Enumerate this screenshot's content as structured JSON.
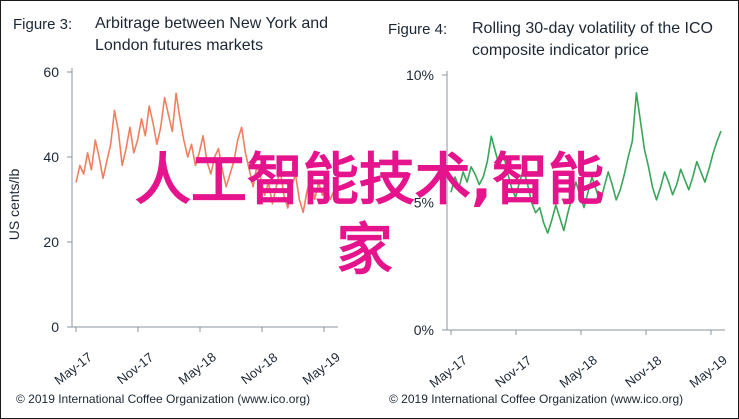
{
  "overlay": {
    "line1": "人工智能技术,智能",
    "line2": "家"
  },
  "colors": {
    "series1": "#f07f61",
    "series2": "#3aa55a",
    "axis": "#8a949e",
    "text": "#1c2733",
    "overlay": "#e6148c"
  },
  "chart_data": [
    {
      "type": "line",
      "figure_label": "Figure 3:",
      "title": "Arbitrage between New York and London futures markets",
      "title_lines": [
        "Arbitrage between New York and",
        "London futures markets"
      ],
      "ylabel": "US cents/lb",
      "ylim": [
        0,
        60
      ],
      "yticks": [
        0,
        20,
        40,
        60
      ],
      "ytick_labels": [
        "0",
        "20",
        "40",
        "60"
      ],
      "x_range": [
        "2017-05",
        "2019-05"
      ],
      "xticks": [
        "May-17",
        "Nov-17",
        "May-18",
        "Nov-18",
        "May-19"
      ],
      "grid": false,
      "legend": "none",
      "series": [
        {
          "values": [
            34,
            38,
            36,
            41,
            37,
            44,
            40,
            35,
            39,
            43,
            51,
            46,
            38,
            42,
            47,
            41,
            44,
            49,
            45,
            52,
            48,
            43,
            47,
            54,
            50,
            46,
            55,
            49,
            44,
            40,
            43,
            38,
            41,
            45,
            39,
            36,
            40,
            42,
            37,
            33,
            36,
            39,
            44,
            47,
            41,
            37,
            33,
            38,
            35,
            31,
            34,
            29,
            33,
            37,
            31,
            28,
            33,
            36,
            30,
            27,
            32,
            35,
            30,
            34,
            31,
            33,
            30,
            32
          ]
        }
      ],
      "footer": "© 2019 International Coffee Organization (www.ico.org)"
    },
    {
      "type": "line",
      "figure_label": "Figure 4:",
      "title": "Rolling 30-day volatility of the ICO composite indicator price",
      "title_lines": [
        "Rolling 30-day volatility of the ICO",
        "composite indicator price"
      ],
      "ylabel": "",
      "ylim": [
        0,
        10
      ],
      "yticks": [
        0,
        5,
        10
      ],
      "ytick_labels": [
        "0%",
        "5%",
        "10%"
      ],
      "x_range": [
        "2017-05",
        "2019-05"
      ],
      "xticks": [
        "May-17",
        "Nov-17",
        "May-18",
        "Nov-18",
        "May-19"
      ],
      "grid": false,
      "legend": "none",
      "series": [
        {
          "values": [
            5.4,
            6.0,
            5.6,
            6.2,
            5.8,
            6.4,
            6.1,
            5.7,
            6.0,
            6.6,
            7.6,
            7.0,
            6.4,
            6.9,
            6.2,
            5.6,
            5.2,
            5.8,
            6.3,
            5.7,
            5.0,
            4.6,
            4.8,
            4.2,
            3.8,
            4.3,
            4.9,
            4.4,
            3.9,
            4.6,
            5.2,
            5.8,
            5.3,
            4.8,
            5.4,
            6.0,
            5.5,
            5.0,
            5.6,
            6.2,
            5.7,
            5.1,
            5.5,
            6.1,
            6.8,
            7.4,
            9.3,
            8.2,
            7.1,
            6.4,
            5.6,
            5.1,
            5.6,
            6.2,
            5.8,
            5.3,
            5.7,
            6.3,
            5.9,
            5.5,
            6.0,
            6.6,
            6.2,
            5.8,
            6.3,
            6.9,
            7.4,
            7.8
          ]
        }
      ],
      "footer": "© 2019 International Coffee Organization (www.ico.org)"
    }
  ]
}
